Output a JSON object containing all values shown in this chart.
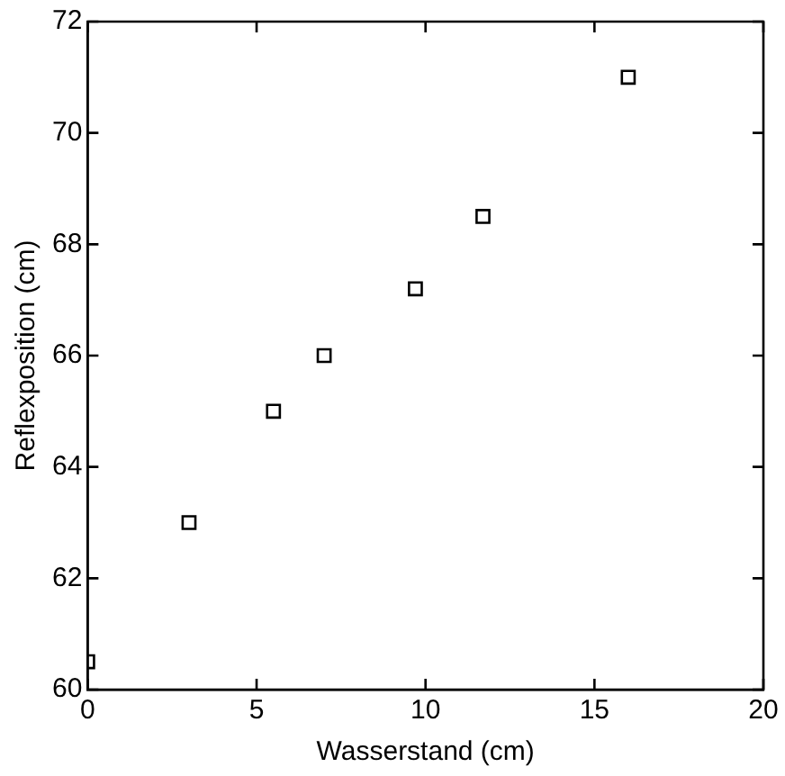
{
  "chart_data": {
    "type": "scatter",
    "xlabel": "Wasserstand (cm)",
    "ylabel": "Reflexposition (cm)",
    "x": [
      0,
      3,
      5.5,
      7,
      9.7,
      11.7,
      16
    ],
    "series": [
      {
        "color": "#000000",
        "values": [
          60.5,
          63,
          65,
          66,
          67.2,
          68.5,
          71
        ]
      }
    ],
    "xlim": [
      0,
      20
    ],
    "xticks": [
      0,
      5,
      10,
      15,
      20
    ],
    "ylim": [
      60,
      72
    ],
    "yticks": [
      60,
      62,
      64,
      66,
      68,
      70,
      72
    ],
    "marker": "square",
    "grid": false,
    "legend": false
  }
}
